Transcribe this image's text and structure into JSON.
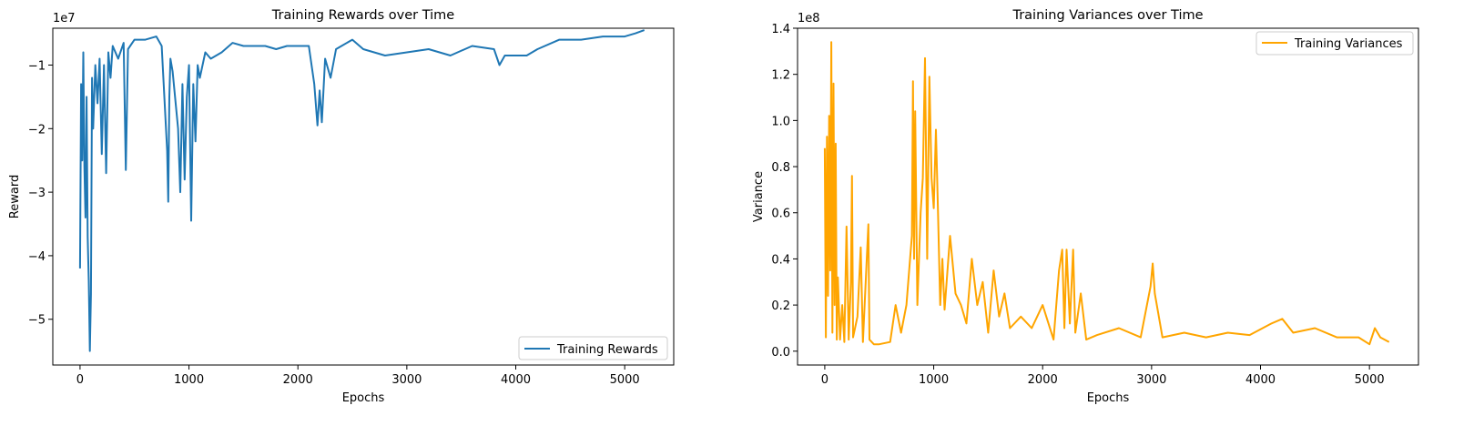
{
  "colors": {
    "rewards_line": "#1f77b4",
    "variances_line": "#ffa500",
    "axes": "#000000",
    "background": "#ffffff",
    "legend_border": "#cccccc"
  },
  "chart_data": [
    {
      "type": "line",
      "title": "Training Rewards over Time",
      "xlabel": "Epochs",
      "ylabel": "Reward",
      "offset_label": "1e7",
      "xlim": [
        -250,
        5450
      ],
      "ylim": [
        -5.72,
        -0.42
      ],
      "xticks": [
        0,
        1000,
        2000,
        3000,
        4000,
        5000
      ],
      "xtick_labels": [
        "0",
        "1000",
        "2000",
        "3000",
        "4000",
        "5000"
      ],
      "yticks": [
        -5,
        -4,
        -3,
        -2,
        -1
      ],
      "ytick_labels": [
        "−5",
        "−4",
        "−3",
        "−2",
        "−1"
      ],
      "grid": false,
      "legend": {
        "position": "lower right"
      },
      "series": [
        {
          "name": "Training Rewards",
          "x": [
            0,
            10,
            20,
            30,
            40,
            50,
            60,
            70,
            80,
            90,
            100,
            110,
            120,
            140,
            160,
            180,
            200,
            220,
            240,
            260,
            280,
            300,
            350,
            400,
            420,
            440,
            500,
            600,
            700,
            750,
            800,
            810,
            820,
            830,
            850,
            900,
            920,
            940,
            960,
            980,
            1000,
            1020,
            1040,
            1060,
            1080,
            1100,
            1150,
            1200,
            1300,
            1400,
            1500,
            1600,
            1700,
            1800,
            1900,
            2000,
            2100,
            2150,
            2180,
            2200,
            2220,
            2250,
            2300,
            2350,
            2400,
            2500,
            2600,
            2800,
            3000,
            3200,
            3400,
            3600,
            3800,
            3850,
            3900,
            4000,
            4100,
            4200,
            4400,
            4600,
            4800,
            5000,
            5100,
            5180
          ],
          "y": [
            -4.2,
            -1.3,
            -2.5,
            -0.8,
            -2.6,
            -3.4,
            -1.5,
            -3.7,
            -4.4,
            -5.5,
            -4.6,
            -1.2,
            -2.0,
            -1.0,
            -1.6,
            -0.9,
            -2.4,
            -1.0,
            -2.7,
            -0.8,
            -1.2,
            -0.7,
            -0.9,
            -0.65,
            -2.65,
            -0.75,
            -0.6,
            -0.6,
            -0.55,
            -0.7,
            -2.35,
            -3.15,
            -1.5,
            -0.9,
            -1.1,
            -2.0,
            -3.0,
            -1.3,
            -2.8,
            -1.5,
            -1.0,
            -3.45,
            -1.3,
            -2.2,
            -1.0,
            -1.2,
            -0.8,
            -0.9,
            -0.8,
            -0.65,
            -0.7,
            -0.7,
            -0.7,
            -0.75,
            -0.7,
            -0.7,
            -0.7,
            -1.3,
            -1.95,
            -1.4,
            -1.9,
            -0.9,
            -1.2,
            -0.75,
            -0.7,
            -0.6,
            -0.75,
            -0.85,
            -0.8,
            -0.75,
            -0.85,
            -0.7,
            -0.75,
            -1.0,
            -0.85,
            -0.85,
            -0.85,
            -0.75,
            -0.6,
            -0.6,
            -0.55,
            -0.55,
            -0.5,
            -0.45
          ]
        }
      ]
    },
    {
      "type": "line",
      "title": "Training Variances over Time",
      "xlabel": "Epochs",
      "ylabel": "Variance",
      "offset_label": "1e8",
      "xlim": [
        -250,
        5450
      ],
      "ylim": [
        -0.06,
        1.4
      ],
      "xticks": [
        0,
        1000,
        2000,
        3000,
        4000,
        5000
      ],
      "xtick_labels": [
        "0",
        "1000",
        "2000",
        "3000",
        "4000",
        "5000"
      ],
      "yticks": [
        0.0,
        0.2,
        0.4,
        0.6,
        0.8,
        1.0,
        1.2,
        1.4
      ],
      "ytick_labels": [
        "0.0",
        "0.2",
        "0.4",
        "0.6",
        "0.8",
        "1.0",
        "1.2",
        "1.4"
      ],
      "grid": false,
      "legend": {
        "position": "upper right"
      },
      "series": [
        {
          "name": "Training Variances",
          "x": [
            0,
            10,
            20,
            30,
            40,
            50,
            60,
            70,
            80,
            90,
            100,
            110,
            120,
            140,
            160,
            180,
            200,
            220,
            240,
            250,
            260,
            300,
            330,
            350,
            400,
            410,
            450,
            500,
            600,
            650,
            700,
            750,
            800,
            810,
            820,
            830,
            850,
            880,
            900,
            920,
            940,
            960,
            980,
            1000,
            1020,
            1040,
            1060,
            1080,
            1100,
            1150,
            1200,
            1250,
            1300,
            1350,
            1400,
            1450,
            1500,
            1550,
            1600,
            1650,
            1700,
            1800,
            1900,
            2000,
            2100,
            2150,
            2180,
            2200,
            2220,
            2250,
            2280,
            2300,
            2350,
            2400,
            2500,
            2700,
            2900,
            2990,
            3010,
            3030,
            3100,
            3300,
            3500,
            3700,
            3900,
            4100,
            4200,
            4300,
            4500,
            4700,
            4900,
            5000,
            5050,
            5100,
            5180
          ],
          "y": [
            0.88,
            0.06,
            0.93,
            0.24,
            1.02,
            0.35,
            1.34,
            0.08,
            1.16,
            0.2,
            0.9,
            0.05,
            0.32,
            0.05,
            0.2,
            0.04,
            0.54,
            0.05,
            0.3,
            0.76,
            0.06,
            0.15,
            0.45,
            0.04,
            0.55,
            0.05,
            0.03,
            0.03,
            0.04,
            0.2,
            0.08,
            0.2,
            0.5,
            1.17,
            0.4,
            1.04,
            0.2,
            0.6,
            0.75,
            1.27,
            0.4,
            1.19,
            0.75,
            0.62,
            0.96,
            0.6,
            0.2,
            0.4,
            0.18,
            0.5,
            0.25,
            0.2,
            0.12,
            0.4,
            0.2,
            0.3,
            0.08,
            0.35,
            0.15,
            0.25,
            0.1,
            0.15,
            0.1,
            0.2,
            0.05,
            0.35,
            0.44,
            0.1,
            0.44,
            0.12,
            0.44,
            0.08,
            0.25,
            0.05,
            0.07,
            0.1,
            0.06,
            0.28,
            0.38,
            0.25,
            0.06,
            0.08,
            0.06,
            0.08,
            0.07,
            0.12,
            0.14,
            0.08,
            0.1,
            0.06,
            0.06,
            0.03,
            0.1,
            0.06,
            0.04
          ]
        }
      ]
    }
  ]
}
